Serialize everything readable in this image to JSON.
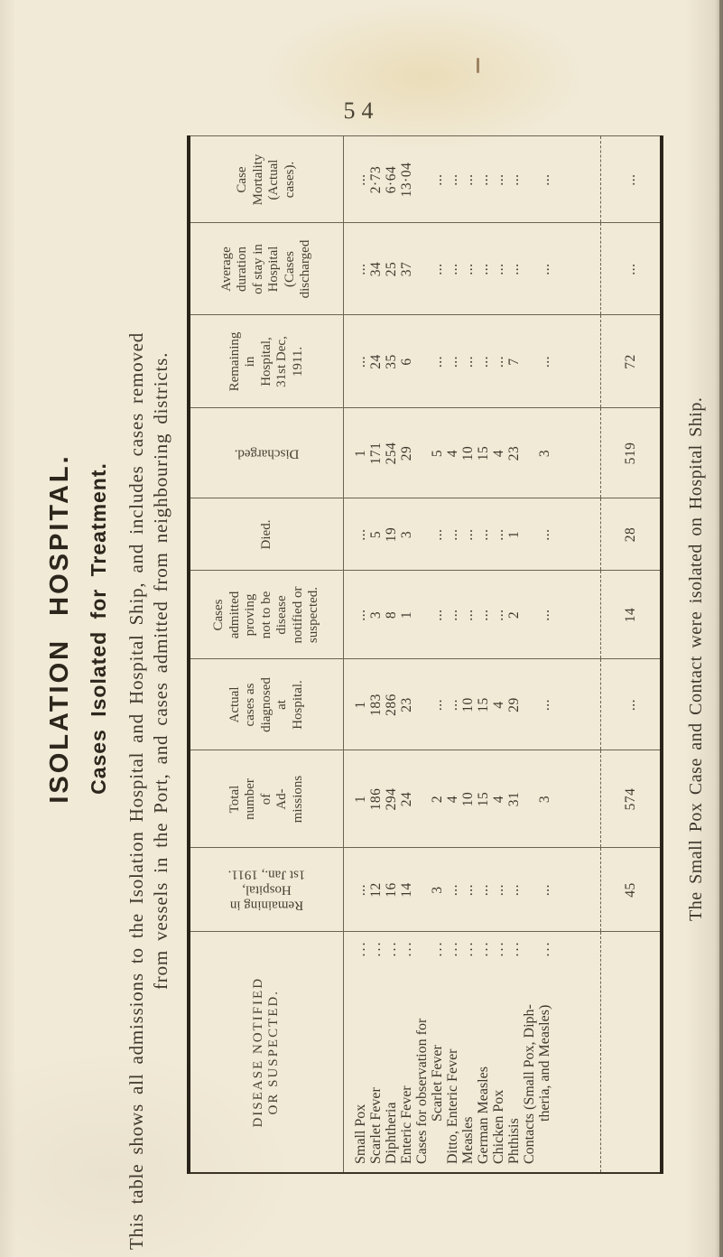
{
  "page": {
    "number": "54"
  },
  "title": "ISOLATION  HOSPITAL.",
  "subtitle": "Cases  Isolated  for  Treatment.",
  "intro": {
    "line1": "This table shows all admissions to the Isolation Hospital and Hospital Ship, and includes cases removed",
    "line2": "from vessels in the Port, and cases admitted from neighbouring districts."
  },
  "footnote": "The Small Pox Case and Contact were isolated on Hospital Ship.",
  "table": {
    "leader": "...",
    "headers": [
      {
        "id": "disease",
        "lines": "DISEASE  NOTIFIED\nOR  SUSPECTED.",
        "rotated": false
      },
      {
        "id": "remaining_jan",
        "lines": "Remaining in\nHospital,\n1st Jan., 1911.",
        "rotated": true
      },
      {
        "id": "admissions",
        "lines": "Total\nnumber\nof\nAd-\nmissions",
        "rotated": false
      },
      {
        "id": "actual_cases",
        "lines": "Actual\ncases as\ndiagnosed\nat\nHospital.",
        "rotated": false
      },
      {
        "id": "proving_not",
        "lines": "Cases\nadmitted\nproving\nnot to be\ndisease\nnotified or\nsuspected.",
        "rotated": false
      },
      {
        "id": "died",
        "lines": "Died.",
        "rotated": false
      },
      {
        "id": "discharged",
        "lines": "Discharged.",
        "rotated": true
      },
      {
        "id": "remaining_dec",
        "lines": "Remaining\nin\nHospital,\n31st Dec,\n1911.",
        "rotated": false
      },
      {
        "id": "avg_duration",
        "lines": "Average\nduration\nof stay in\nHospital\n(Cases\ndischarged",
        "rotated": false
      },
      {
        "id": "mortality",
        "lines": "Case\nMortality\n(Actual\ncases).",
        "rotated": false
      }
    ],
    "value_columns_order": [
      "remaining_jan",
      "admissions",
      "actual_cases",
      "proving_not",
      "died",
      "discharged",
      "remaining_dec",
      "avg_duration",
      "mortality"
    ],
    "rows": [
      {
        "label": "Small Pox",
        "label2": "",
        "values": [
          "...",
          "1",
          "1",
          "...",
          "...",
          "1",
          "...",
          "...",
          "..."
        ]
      },
      {
        "label": "Scarlet Fever",
        "label2": "",
        "values": [
          "12",
          "186",
          "183",
          "3",
          "5",
          "171",
          "24",
          "34",
          "2·73"
        ]
      },
      {
        "label": "Diphtheria",
        "label2": "",
        "values": [
          "16",
          "294",
          "286",
          "8",
          "19",
          "254",
          "35",
          "25",
          "6·64"
        ]
      },
      {
        "label": "Enteric Fever",
        "label2": "",
        "values": [
          "14",
          "24",
          "23",
          "1",
          "3",
          "29",
          "6",
          "37",
          "13·04"
        ]
      },
      {
        "label": "Cases for observation for",
        "label2": "Scarlet Fever",
        "values": [
          "3",
          "2",
          "...",
          "...",
          "...",
          "5",
          "...",
          "...",
          "..."
        ]
      },
      {
        "label": "Ditto, Enteric Fever",
        "label2": "",
        "values": [
          "...",
          "4",
          "...",
          "...",
          "...",
          "4",
          "...",
          "...",
          "..."
        ]
      },
      {
        "label": "Measles",
        "label2": "",
        "values": [
          "...",
          "10",
          "10",
          "...",
          "...",
          "10",
          "...",
          "...",
          "..."
        ]
      },
      {
        "label": "German Measles",
        "label2": "",
        "values": [
          "...",
          "15",
          "15",
          "...",
          "...",
          "15",
          "...",
          "...",
          "..."
        ]
      },
      {
        "label": "Chicken Pox",
        "label2": "",
        "values": [
          "...",
          "4",
          "4",
          "...",
          "...",
          "4",
          "...",
          "...",
          "..."
        ]
      },
      {
        "label": "Phthisis",
        "label2": "",
        "values": [
          "...",
          "31",
          "29",
          "2",
          "1",
          "23",
          "7",
          "...",
          "..."
        ]
      },
      {
        "label": "Contacts (Small Pox, Diph-",
        "label2": "theria, and Measles)",
        "values": [
          "...",
          "3",
          "...",
          "...",
          "...",
          "3",
          "...",
          "...",
          "..."
        ]
      }
    ],
    "totals": [
      "45",
      "574",
      "...",
      "14",
      "28",
      "519",
      "72",
      "...",
      "..."
    ]
  }
}
